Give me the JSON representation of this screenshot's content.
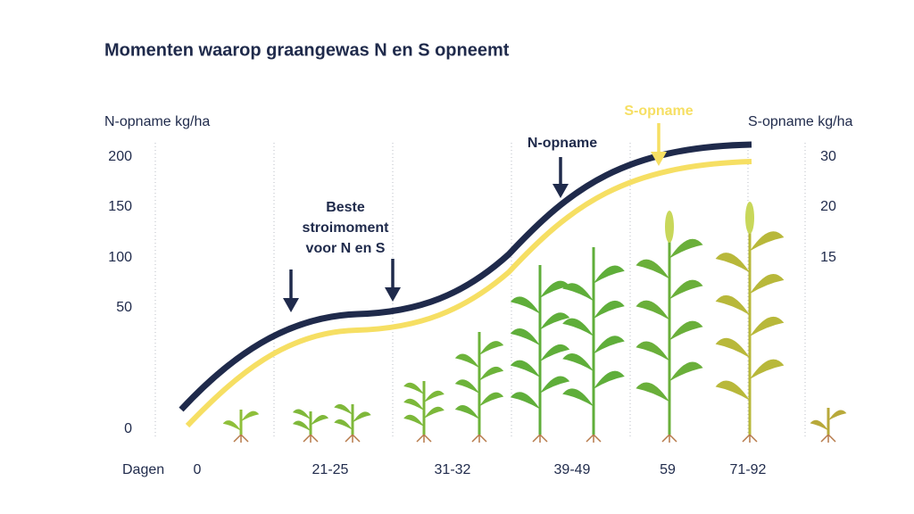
{
  "chart_data": {
    "type": "line",
    "title": "Momenten waarop graangewas N en S opneemt",
    "y_label": "N-opname kg/ha",
    "y2_label": "S-opname kg/ha",
    "x_label": "Dagen",
    "categories": [
      "0",
      "21-25",
      "31-32",
      "39-49",
      "59",
      "71-92"
    ],
    "yticks": [
      0,
      50,
      100,
      150,
      200
    ],
    "y2ticks": [
      15,
      20,
      30
    ],
    "series": [
      {
        "name": "N-opname",
        "color": "#1f2a4b"
      },
      {
        "name": "S-opname",
        "color": "#f6df63"
      }
    ],
    "annotation": [
      "Beste",
      "stroimoment",
      "voor N en S"
    ]
  }
}
